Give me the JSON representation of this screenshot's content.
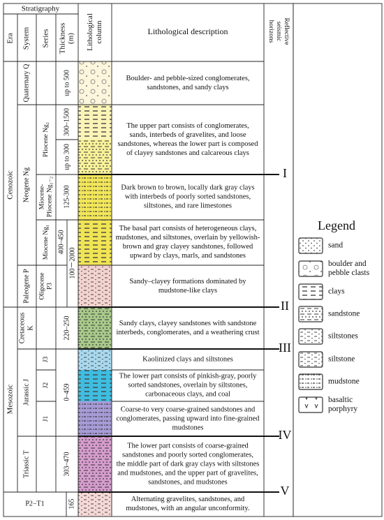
{
  "header": {
    "stratigraphy": "Stratigraphy",
    "era": "Era",
    "system": "System",
    "series": "Series",
    "thickness": [
      "Thickness",
      "(m)"
    ],
    "lithological_column": [
      "Lithological",
      "column"
    ],
    "lithological_description": "Lithological description",
    "reflective": [
      "Reflective",
      "seismic",
      "horizons"
    ]
  },
  "eras": [
    "Cenozoic",
    "Mesozoic"
  ],
  "systems": [
    [
      "Quaternary Q"
    ],
    [
      "Neogene Ng"
    ],
    [
      "Paleogene P"
    ],
    [
      "Cretaceous",
      "K"
    ],
    [
      "Jurassic J"
    ],
    [
      "Triassic T"
    ]
  ],
  "series": [
    [
      "Pliocene Ng₂"
    ],
    [
      "Miocene-",
      "Pliocene Ng₁₋₂"
    ],
    [
      "Miocene Ng₁"
    ],
    [
      "Oligocene",
      "P3"
    ],
    [
      "J3"
    ],
    [
      "J2"
    ],
    [
      "J1"
    ]
  ],
  "bottom_unit": "P2−T1",
  "thickness": [
    "up to 500",
    "300–1500",
    "up to 300",
    "125-300",
    "400–450",
    "100－2000",
    "220–250",
    "0–459",
    "303–470",
    "165"
  ],
  "descriptions": [
    [
      "Boulder- and pebble-sized conglomerates,",
      "sandstones, and sandy clays"
    ],
    [
      "The upper part consists of conglomerates,",
      "sands, interbeds of gravelites, and loose",
      "sandstones, whereas the lower part is composed",
      "of clayey sandstones and calcareous clays"
    ],
    [
      "Dark brown to brown, locally dark gray clays",
      "with interbeds of poorly sorted sandstones,",
      "siltstones, and rare limestones"
    ],
    [
      "The basal part consists of heterogeneous clays,",
      "mudstones, and siltstones, overlain by yellowish-",
      "brown and gray clayey sandstones, followed",
      "upward by clays, marls, and sandstones"
    ],
    [
      "Sandy–clayey formations dominated by",
      "mudstone-like clays"
    ],
    [
      "Sandy clays, clayey sandstones with sandstone",
      "interbeds, conglomerates, and a weathering crust"
    ],
    [
      "Kaolinized clays and siltstones"
    ],
    [
      "The lower part consists of pinkish-gray, poorly",
      "sorted sandstones, overlain by siltstones,",
      "carbonaceous clays, and coal"
    ],
    [
      "Coarse-to very coarse-grained sandstones and",
      "conglomerates, passing upward into fine-grained",
      "mudstones"
    ],
    [
      "The lower part consists of coarse-grained",
      "sandstones and poorly sorted conglomerates,",
      "the middle part of dark gray clays with siltstones",
      "and mudstones, and the upper part of gravelites,",
      "sandstones, and mudstones"
    ],
    [
      "Alternating gravelites, sandstones, and",
      "mudstones, with an angular unconformity."
    ]
  ],
  "horizons": [
    "I",
    "II",
    "III",
    "IV",
    "V"
  ],
  "legend": {
    "title": "Legend",
    "items": [
      [
        "sand"
      ],
      [
        "boulder and",
        "pebble clasts"
      ],
      [
        "clays"
      ],
      [
        "sandstone"
      ],
      [
        "siltstones"
      ],
      [
        "siltstone"
      ],
      [
        "mudstone"
      ],
      [
        "basaltic",
        "porphyry"
      ]
    ]
  }
}
